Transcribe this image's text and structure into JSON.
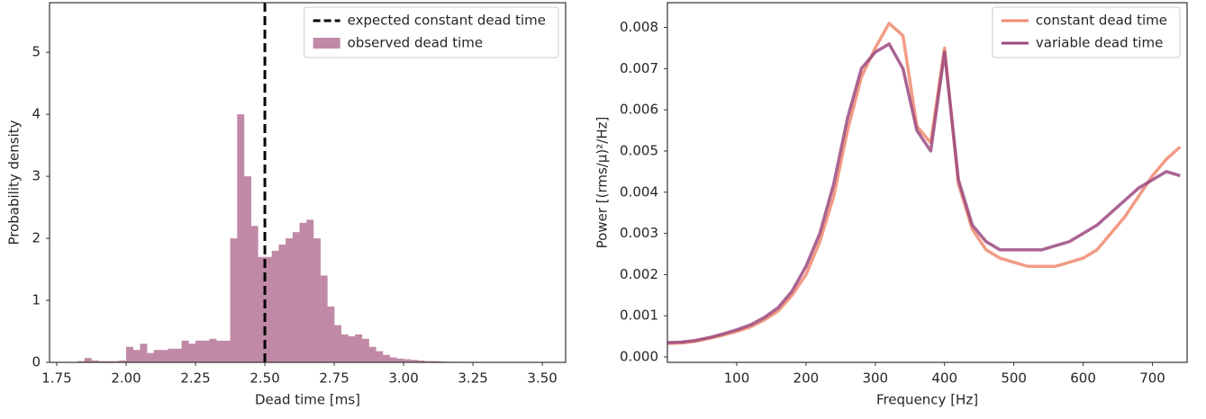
{
  "chart_data": [
    {
      "type": "histogram",
      "xlabel": "Dead time [ms]",
      "ylabel": "Probability density",
      "bins": [
        1.8,
        1.825,
        1.85,
        1.875,
        1.9,
        1.925,
        1.95,
        1.975,
        2.0,
        2.025,
        2.05,
        2.075,
        2.1,
        2.125,
        2.15,
        2.175,
        2.2,
        2.225,
        2.25,
        2.275,
        2.3,
        2.325,
        2.35,
        2.375,
        2.4,
        2.425,
        2.45,
        2.475,
        2.5,
        2.525,
        2.55,
        2.575,
        2.6,
        2.625,
        2.65,
        2.675,
        2.7,
        2.725,
        2.75,
        2.775,
        2.8,
        2.825,
        2.85,
        2.875,
        2.9,
        2.925,
        2.95,
        2.975,
        3.0,
        3.025,
        3.05,
        3.075,
        3.1,
        3.125,
        3.15,
        3.175,
        3.2,
        3.225,
        3.25,
        3.275,
        3.3
      ],
      "counts": [
        0,
        0.02,
        0.07,
        0.03,
        0.02,
        0.02,
        0.02,
        0.03,
        0.25,
        0.2,
        0.3,
        0.15,
        0.2,
        0.2,
        0.22,
        0.22,
        0.35,
        0.3,
        0.35,
        0.35,
        0.38,
        0.35,
        0.35,
        2.0,
        4.0,
        3.0,
        2.2,
        1.7,
        1.7,
        1.8,
        1.9,
        2.0,
        2.1,
        2.25,
        2.3,
        2.0,
        1.4,
        0.9,
        0.6,
        0.45,
        0.42,
        0.45,
        0.38,
        0.25,
        0.18,
        0.12,
        0.08,
        0.06,
        0.05,
        0.04,
        0.03,
        0.02,
        0.02,
        0.015,
        0.01,
        0.01,
        0.005,
        0.003,
        0.002,
        0.001
      ],
      "name": "observed dead time",
      "color": "#c08aa6",
      "vline": {
        "x": 2.5,
        "name": "expected constant dead time",
        "color": "#000000"
      },
      "xlim": [
        1.724,
        3.584
      ],
      "xticks": [
        1.75,
        {
          "value": 2,
          "label": "2.00"
        },
        2.25,
        {
          "value": 2.5,
          "label": "2.50"
        },
        2.75,
        {
          "value": 3,
          "label": "3.00"
        },
        3.25,
        {
          "value": 3.5,
          "label": "3.50"
        }
      ],
      "ylim": [
        0,
        5.8
      ],
      "yticks": [
        0,
        1,
        2,
        3,
        4,
        5
      ],
      "legend": "upper right"
    },
    {
      "type": "line",
      "xlabel": "Frequency [Hz]",
      "ylabel": "Power [(rms/μ)²/Hz]",
      "x": [
        0,
        20,
        40,
        60,
        80,
        100,
        120,
        140,
        160,
        180,
        200,
        220,
        240,
        260,
        280,
        300,
        320,
        340,
        360,
        380,
        400,
        420,
        440,
        460,
        480,
        500,
        520,
        540,
        560,
        580,
        600,
        620,
        640,
        660,
        680,
        700,
        720,
        740
      ],
      "series": [
        {
          "name": "constant dead time",
          "color": "#f08a70",
          "values": [
            0.00033,
            0.00034,
            0.00038,
            0.00045,
            0.00053,
            0.00062,
            0.00073,
            0.0009,
            0.00112,
            0.0015,
            0.002,
            0.0028,
            0.0039,
            0.0055,
            0.0068,
            0.0075,
            0.0081,
            0.0078,
            0.0056,
            0.0052,
            0.0075,
            0.0042,
            0.0031,
            0.0026,
            0.0024,
            0.0023,
            0.0022,
            0.0022,
            0.0022,
            0.0023,
            0.0024,
            0.0026,
            0.003,
            0.0034,
            0.0039,
            0.0044,
            0.0048,
            0.0051
          ]
        },
        {
          "name": "variable dead time",
          "color": "#9b4a80",
          "values": [
            0.00035,
            0.00036,
            0.0004,
            0.00047,
            0.00056,
            0.00066,
            0.00078,
            0.00096,
            0.0012,
            0.0016,
            0.0022,
            0.003,
            0.0042,
            0.0058,
            0.007,
            0.0074,
            0.0076,
            0.007,
            0.0055,
            0.005,
            0.0074,
            0.0043,
            0.0032,
            0.0028,
            0.0026,
            0.0026,
            0.0026,
            0.0026,
            0.0027,
            0.0028,
            0.003,
            0.0032,
            0.0035,
            0.0038,
            0.0041,
            0.0043,
            0.0045,
            0.0044
          ]
        }
      ],
      "xlim": [
        0,
        750
      ],
      "xticks": [
        100,
        200,
        300,
        400,
        500,
        600,
        700
      ],
      "ylim": [
        -0.00013,
        0.0086
      ],
      "yticks": [
        {
          "value": 0,
          "label": "0.000"
        },
        0.001,
        0.002,
        0.003,
        0.004,
        0.005,
        0.006,
        0.007,
        0.008
      ],
      "legend": "upper right"
    }
  ]
}
